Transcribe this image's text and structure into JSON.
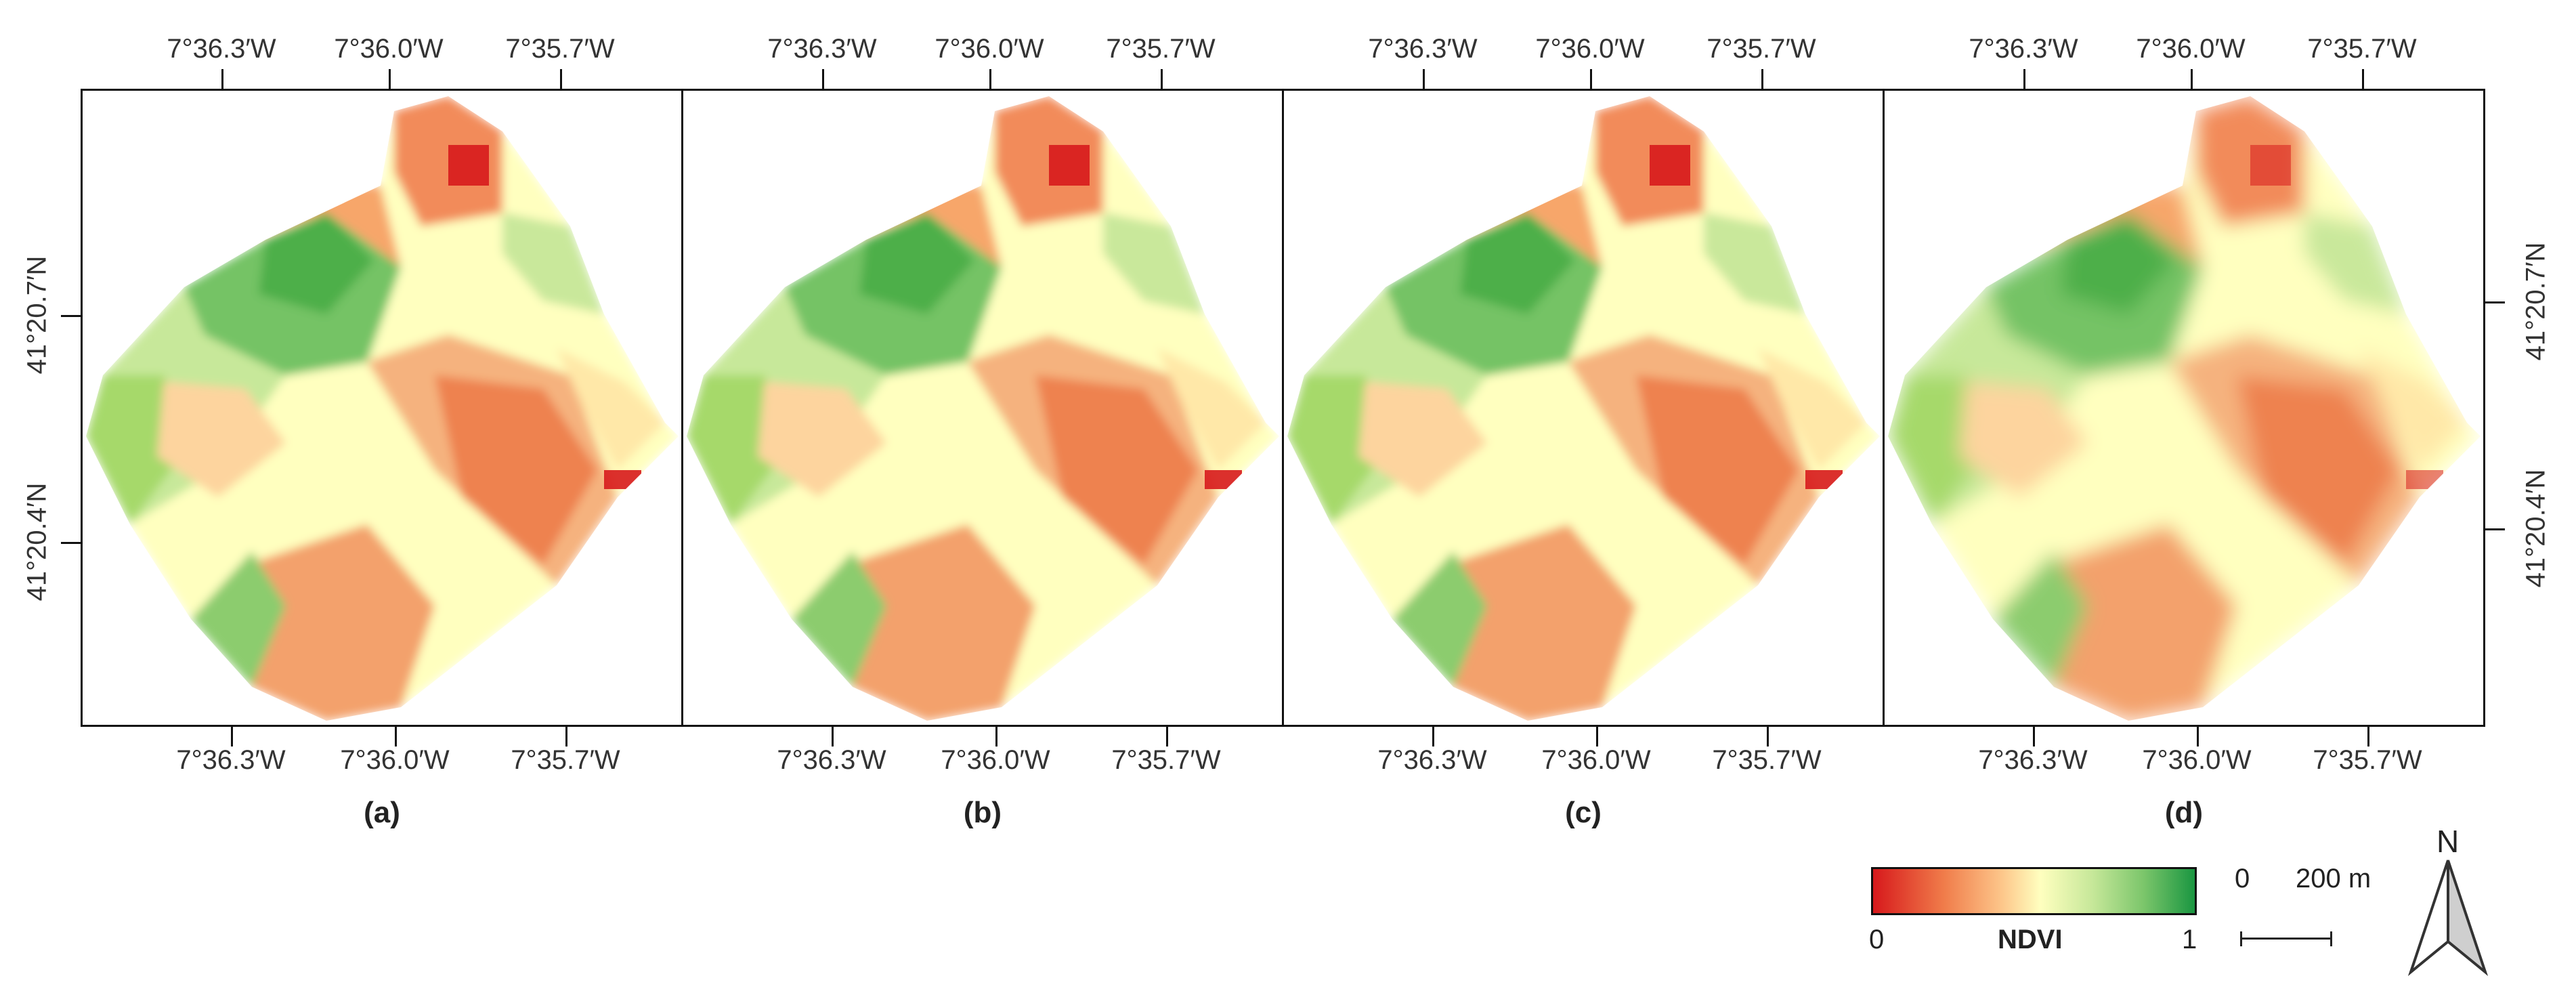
{
  "panels": [
    {
      "id": "a",
      "label": "(a)"
    },
    {
      "id": "b",
      "label": "(b)"
    },
    {
      "id": "c",
      "label": "(c)"
    },
    {
      "id": "d",
      "label": "(d)"
    }
  ],
  "axes": {
    "top_ticks": [
      "7°36.3′W",
      "7°36.0′W",
      "7°35.7′W"
    ],
    "bottom_ticks": [
      "7°36.3′W",
      "7°36.0′W",
      "7°35.7′W"
    ],
    "left_ticks": [
      "41°20.7′N",
      "41°20.4′N"
    ],
    "right_ticks": [
      "41°20.7′N",
      "41°20.4′N"
    ]
  },
  "legend": {
    "title": "NDVI",
    "min_label": "0",
    "max_label": "1",
    "colors": [
      "#d7191c",
      "#fdae61",
      "#ffffbf",
      "#a6d96a",
      "#1a9641"
    ]
  },
  "scalebar": {
    "zero_label": "0",
    "length_label": "200 m"
  },
  "north_arrow": {
    "label": "N"
  }
}
